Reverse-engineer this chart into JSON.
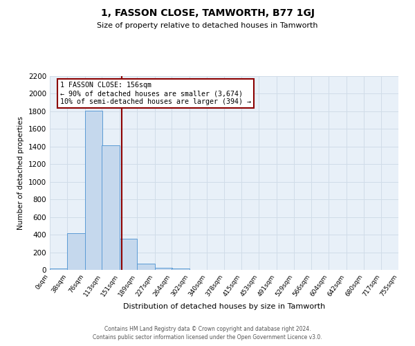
{
  "title": "1, FASSON CLOSE, TAMWORTH, B77 1GJ",
  "subtitle": "Size of property relative to detached houses in Tamworth",
  "xlabel": "Distribution of detached houses by size in Tamworth",
  "ylabel": "Number of detached properties",
  "bin_labels": [
    "0sqm",
    "38sqm",
    "76sqm",
    "113sqm",
    "151sqm",
    "189sqm",
    "227sqm",
    "264sqm",
    "302sqm",
    "340sqm",
    "378sqm",
    "415sqm",
    "453sqm",
    "491sqm",
    "529sqm",
    "566sqm",
    "604sqm",
    "642sqm",
    "680sqm",
    "717sqm",
    "755sqm"
  ],
  "bin_edges": [
    0,
    38,
    76,
    113,
    151,
    189,
    227,
    264,
    302,
    340,
    378,
    415,
    453,
    491,
    529,
    566,
    604,
    642,
    680,
    717,
    755
  ],
  "bar_heights": [
    15,
    420,
    1810,
    1415,
    350,
    72,
    22,
    15,
    0,
    0,
    0,
    0,
    0,
    0,
    0,
    0,
    0,
    0,
    0,
    0
  ],
  "bar_color": "#c5d8ed",
  "bar_edge_color": "#5b9bd5",
  "property_size": 156,
  "vline_color": "#8B0000",
  "annotation_text": "1 FASSON CLOSE: 156sqm\n← 90% of detached houses are smaller (3,674)\n10% of semi-detached houses are larger (394) →",
  "annotation_box_color": "white",
  "annotation_box_edge_color": "#8B0000",
  "ylim": [
    0,
    2200
  ],
  "yticks": [
    0,
    200,
    400,
    600,
    800,
    1000,
    1200,
    1400,
    1600,
    1800,
    2000,
    2200
  ],
  "grid_color": "#d0dce8",
  "background_color": "#e8f0f8",
  "footer_line1": "Contains HM Land Registry data © Crown copyright and database right 2024.",
  "footer_line2": "Contains public sector information licensed under the Open Government Licence v3.0."
}
